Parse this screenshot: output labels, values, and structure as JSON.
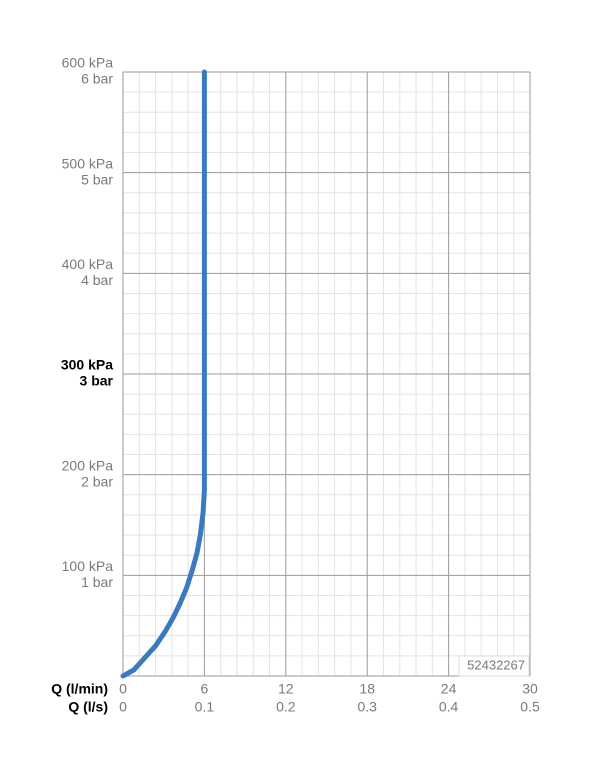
{
  "chart_data": {
    "type": "line",
    "x": [
      0,
      0.8,
      1.6,
      2.4,
      3.1,
      3.7,
      4.2,
      4.7,
      5.1,
      5.45,
      5.7,
      5.9,
      6.0,
      6.0
    ],
    "values": [
      0,
      6,
      18,
      30,
      44,
      58,
      72,
      88,
      105,
      122,
      140,
      162,
      185,
      600
    ],
    "color": "#3a7bbf",
    "xlim": [
      0,
      30
    ],
    "xticks": [
      0,
      6,
      12,
      18,
      24,
      30
    ],
    "x2lim": [
      0,
      0.5
    ],
    "x2ticks": [
      0,
      0.1,
      0.2,
      0.3,
      0.4,
      0.5
    ],
    "ylim": [
      0,
      600
    ],
    "yticks": [
      {
        "value": 100,
        "label": "100 kPa"
      },
      {
        "value": 200,
        "label": "200 kPa"
      },
      {
        "value": 300,
        "label": "300 kPa"
      },
      {
        "value": 400,
        "label": "400 kPa"
      },
      {
        "value": 500,
        "label": "500 kPa"
      },
      {
        "value": 600,
        "label": "600 kPa"
      }
    ],
    "y2lim": [
      0,
      6
    ],
    "y2ticks": [
      {
        "value": 1,
        "label": "1 bar"
      },
      {
        "value": 2,
        "label": "2 bar"
      },
      {
        "value": 3,
        "label": "3 bar"
      },
      {
        "value": 4,
        "label": "4 bar"
      },
      {
        "value": 5,
        "label": "5 bar"
      },
      {
        "value": 6,
        "label": "6 bar"
      }
    ],
    "highlight_ytick": 300,
    "xlabel": "Q (l/min)",
    "x2label": "Q (l/s)",
    "annotation": "52432267",
    "grid": true,
    "minor_grid": 5
  }
}
